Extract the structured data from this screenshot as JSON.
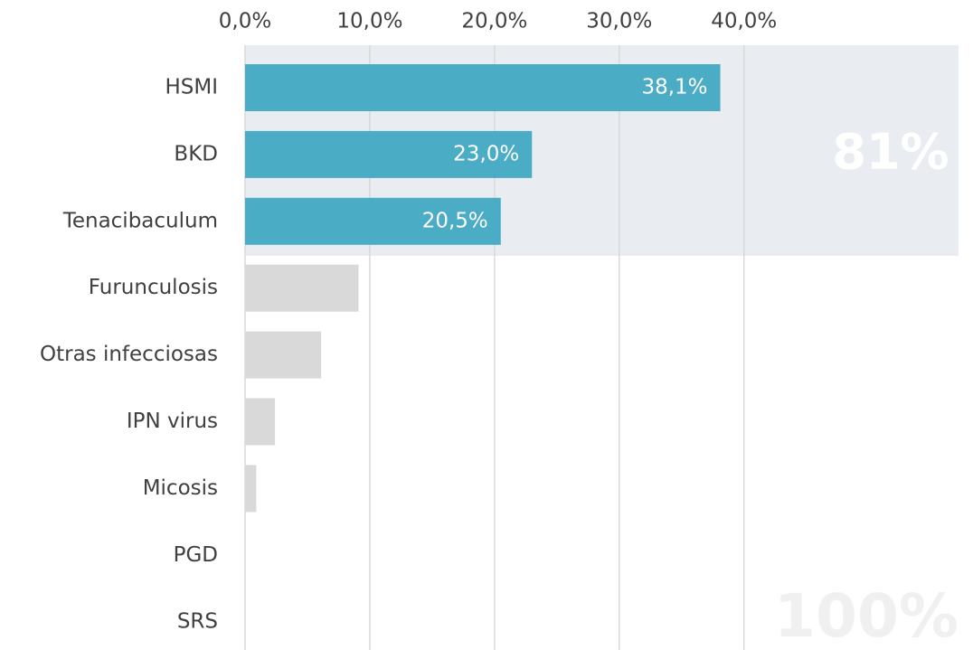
{
  "chart_data": {
    "type": "bar",
    "orientation": "horizontal",
    "categories": [
      "HSMI",
      "BKD",
      "Tenacibaculum",
      "Furunculosis",
      "Otras infecciosas",
      "IPN virus",
      "Micosis",
      "PGD",
      "SRS"
    ],
    "values": [
      38.1,
      23.0,
      20.5,
      9.1,
      6.1,
      2.4,
      0.9,
      0,
      0
    ],
    "value_labels": [
      "38,1%",
      "23,0%",
      "20,5%",
      null,
      null,
      null,
      null,
      null,
      null
    ],
    "colors": [
      "#4bacc6",
      "#4bacc6",
      "#4bacc6",
      "#d9d9d9",
      "#d9d9d9",
      "#d9d9d9",
      "#d9d9d9",
      "#d9d9d9",
      "#d9d9d9"
    ],
    "xlim": [
      0,
      57.2
    ],
    "xticks": [
      {
        "value": 0,
        "label": "0,0%"
      },
      {
        "value": 10,
        "label": "10,0%"
      },
      {
        "value": 20,
        "label": "20,0%"
      },
      {
        "value": 30,
        "label": "30,0%"
      },
      {
        "value": 40,
        "label": "40,0%"
      }
    ],
    "grid": true,
    "annotations": [
      "81%",
      "100%"
    ]
  }
}
